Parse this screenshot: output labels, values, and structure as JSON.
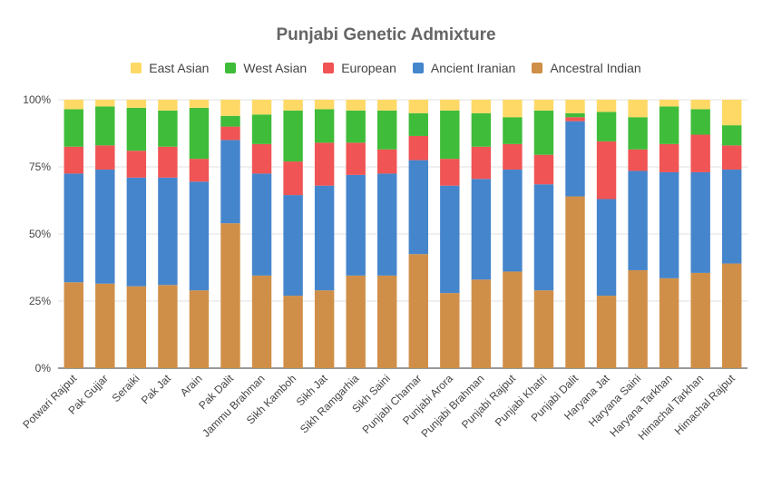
{
  "chart_data": {
    "type": "bar",
    "stacked": true,
    "title": "Punjabi Genetic Admixture",
    "legend_position": "top",
    "xlabel": "",
    "ylabel": "",
    "ylim": [
      0,
      100
    ],
    "y_ticks": [
      "0%",
      "25%",
      "50%",
      "75%",
      "100%"
    ],
    "categories": [
      "Potwari Rajput",
      "Pak Gujjar",
      "Seraiki",
      "Pak Jat",
      "Arain",
      "Pak Dalit",
      "Jammu Brahman",
      "Sikh Kamboh",
      "Sikh Jat",
      "Sikh Ramgarhia",
      "Sikh Saini",
      "Punjabi Chamar",
      "Punjabi Arora",
      "Punjabi Brahman",
      "Punjabi Rajput",
      "Punjabi Khatri",
      "Punjabi Dalit",
      "Haryana Jat",
      "Haryana Saini",
      "Haryana Tarkhan",
      "Himachal Tarkhan",
      "Himachal Rajput"
    ],
    "series": [
      {
        "name": "Ancestral Indian",
        "color": "#d08f48",
        "values": [
          32,
          31.5,
          30.5,
          31,
          29,
          54,
          34.5,
          27,
          29,
          34.5,
          34.5,
          42.5,
          28,
          33,
          36,
          29,
          64,
          27,
          36.5,
          33.5,
          35.5,
          39
        ]
      },
      {
        "name": "Ancient Iranian",
        "color": "#4585cc",
        "values": [
          40.5,
          42.5,
          40.5,
          40,
          40.5,
          31,
          38,
          37.5,
          39,
          37.5,
          38,
          35,
          40,
          37.5,
          38,
          39.5,
          28,
          36,
          37,
          39.5,
          37.5,
          35
        ]
      },
      {
        "name": "European",
        "color": "#f05454",
        "values": [
          10,
          9,
          10,
          11.5,
          8.5,
          5,
          11,
          12.5,
          16,
          12,
          9,
          9,
          10,
          12,
          9.5,
          11,
          1.5,
          21.5,
          8,
          10.5,
          14,
          9
        ]
      },
      {
        "name": "West Asian",
        "color": "#3fbc3a",
        "values": [
          14,
          14.5,
          16,
          13.5,
          19,
          4,
          11,
          19,
          12.5,
          12,
          14.5,
          8.5,
          18,
          12.5,
          10,
          16.5,
          1.5,
          11,
          12,
          14,
          9.5,
          7.5
        ]
      },
      {
        "name": "East Asian",
        "color": "#ffd966",
        "values": [
          3.5,
          2.5,
          3,
          4,
          3,
          6,
          5.5,
          4,
          3.5,
          4,
          4,
          5,
          4,
          5,
          6.5,
          4,
          5,
          4.5,
          6.5,
          2.5,
          3.5,
          9.5
        ]
      }
    ],
    "legend_order": [
      "East Asian",
      "West Asian",
      "European",
      "Ancient Iranian",
      "Ancestral Indian"
    ]
  }
}
